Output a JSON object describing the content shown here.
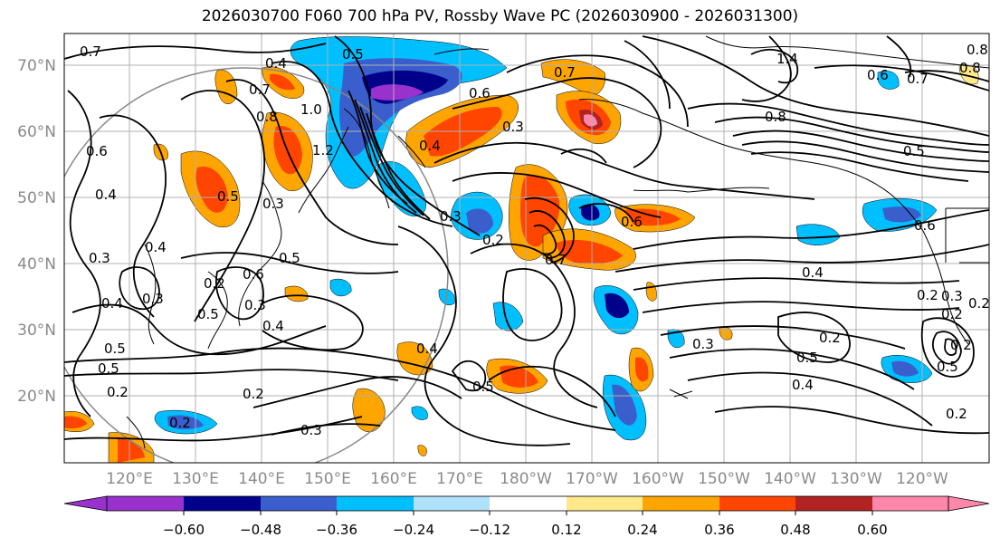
{
  "title": "2026030700 F060 700 hPa PV, Rossby Wave PC (2026030900 - 2026031300)",
  "map": {
    "lat_labels": [
      "70°N",
      "60°N",
      "50°N",
      "40°N",
      "30°N",
      "20°N"
    ],
    "lon_labels": [
      "120°E",
      "130°E",
      "140°E",
      "150°E",
      "160°E",
      "170°E",
      "180°W",
      "170°W",
      "160°W",
      "150°W",
      "140°W",
      "130°W",
      "120°W"
    ],
    "contour_labels": [
      "0.7",
      "0.4",
      "0.5",
      "0.6",
      "0.7",
      "1.4",
      "0.6",
      "0.7",
      "0.8",
      "0.7",
      "0.8",
      "1.0",
      "1.2",
      "0.4",
      "0.8",
      "0.5",
      "0.6",
      "0.4",
      "0.5",
      "0.3",
      "0.6",
      "0.3",
      "0.2",
      "0.6",
      "0.7",
      "0.4",
      "0.5",
      "0.6",
      "0.3",
      "0.2",
      "0.4",
      "0.3",
      "0.2",
      "0.3",
      "0.4",
      "0.5",
      "0.5",
      "0.4",
      "0.5",
      "0.2",
      "0.2",
      "0.3",
      "0.2",
      "0.2",
      "0.3",
      "0.4",
      "0.5",
      "0.5",
      "0.2",
      "0.2",
      "0.3",
      "0.5",
      "0.4",
      "0.2",
      "0.3",
      "0.2",
      "0.8"
    ]
  },
  "colorbar": {
    "ticks": [
      "−0.60",
      "−0.48",
      "−0.36",
      "−0.24",
      "−0.12",
      "0.12",
      "0.24",
      "0.36",
      "0.48",
      "0.60"
    ],
    "colors": [
      "#9932cc",
      "#00008b",
      "#3a5fcd",
      "#00bfff",
      "#afe1fa",
      "#ffffff",
      "#ffe98a",
      "#ffa500",
      "#ff4500",
      "#b22222",
      "#ff88aa"
    ]
  },
  "colors": {
    "neg1": "#9932cc",
    "neg2": "#00008b",
    "neg3": "#3a5fcd",
    "neg4": "#00bfff",
    "neg5": "#afe1fa",
    "pos1": "#ffe98a",
    "pos2": "#ffa500",
    "pos3": "#ff4500",
    "pos4": "#b22222",
    "pos5": "#ff88aa"
  }
}
